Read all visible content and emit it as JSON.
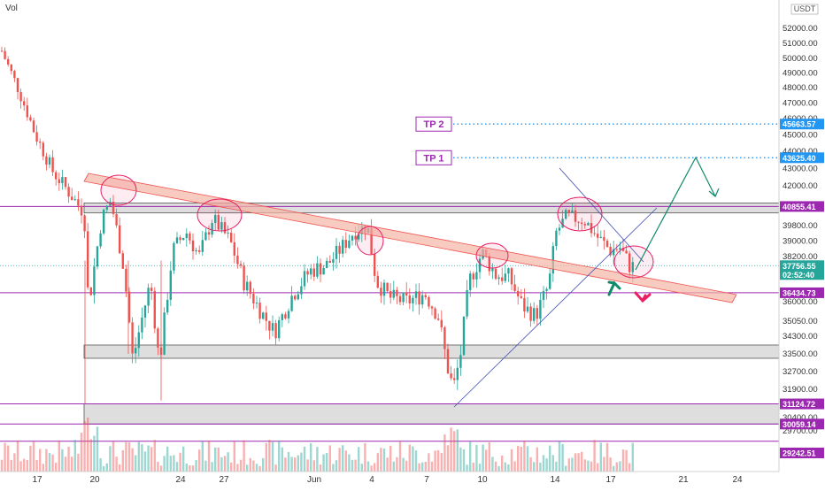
{
  "chart_data": {
    "type": "candlestick",
    "indicator_label": "Vol",
    "currency": "USDT",
    "y_axis": {
      "ylim": [
        29000,
        54000
      ],
      "ticks": [
        52000,
        51000,
        50000,
        49000,
        48000,
        47000,
        46000,
        45000,
        44000,
        43000,
        42000,
        39800,
        39000,
        38200,
        36000,
        35050,
        34300,
        33500,
        32700,
        31900,
        30400,
        29700
      ]
    },
    "x_axis": {
      "ticks": [
        "17",
        "20",
        "24",
        "27",
        "Jun",
        "4",
        "7",
        "10",
        "14",
        "17",
        "21",
        "24"
      ]
    },
    "price_labels": [
      {
        "name": "tp2-level",
        "text": "45663.57",
        "value": 45663.57,
        "color": "#2196f3"
      },
      {
        "name": "tp1-level",
        "text": "43625.40",
        "value": 43625.4,
        "color": "#2196f3"
      },
      {
        "name": "resistance-level",
        "text": "40855.41",
        "value": 40855.41,
        "color": "#9c27b0"
      },
      {
        "name": "current-price",
        "text": "37756.55",
        "value": 37756.55,
        "color": "#26a69a"
      },
      {
        "name": "countdown",
        "text": "02:52:40",
        "value": 37756.55,
        "color": "#26a69a"
      },
      {
        "name": "support-level",
        "text": "36434.73",
        "value": 36434.73,
        "color": "#9c27b0"
      },
      {
        "name": "low-level-1",
        "text": "31124.72",
        "value": 31124.72,
        "color": "#9c27b0"
      },
      {
        "name": "low-level-2",
        "text": "30059.14",
        "value": 30059.14,
        "color": "#9c27b0"
      },
      {
        "name": "low-level-3",
        "text": "29242.51",
        "value": 29242.51,
        "color": "#9c27b0"
      }
    ],
    "targets": [
      {
        "label": "TP 2",
        "value": 45663.57
      },
      {
        "label": "TP 1",
        "value": 43625.4
      }
    ],
    "colors": {
      "up": "#26a69a",
      "down": "#ef5350",
      "level_line": "#9c27b0",
      "target_line": "#2196f3",
      "trendline": "#f0a090",
      "circle": "#e91e63"
    }
  }
}
